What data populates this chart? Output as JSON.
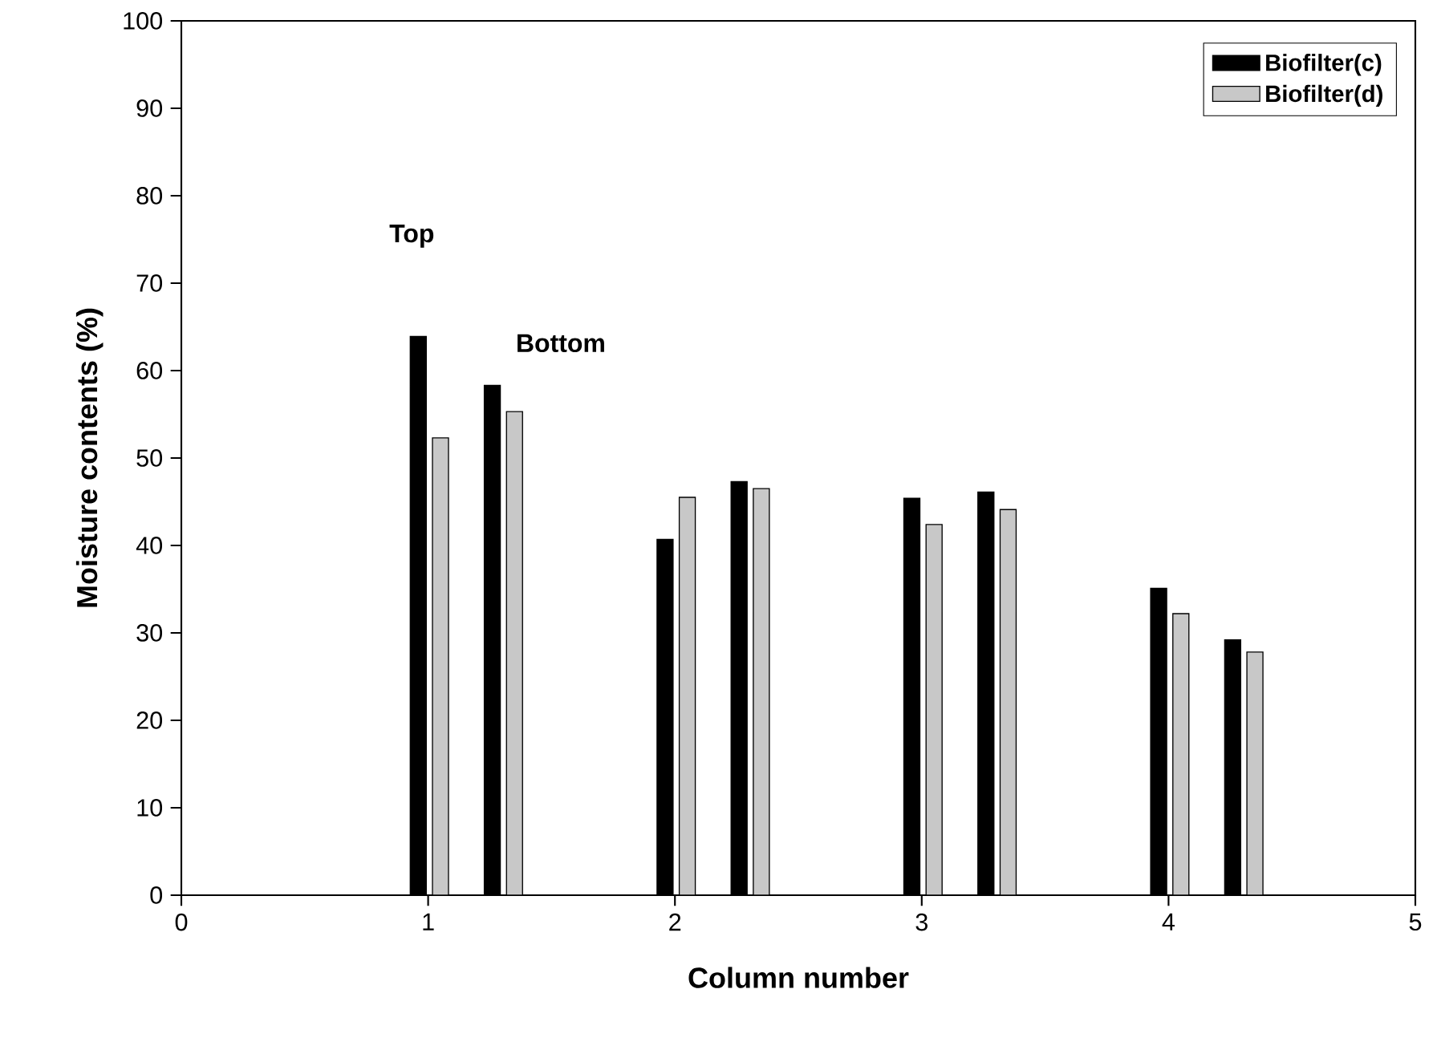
{
  "chart_data": {
    "type": "bar",
    "xlabel": "Column number",
    "ylabel": "Moisture contents (%)",
    "xlim": [
      0,
      5
    ],
    "xticks": [
      0,
      1,
      2,
      3,
      4,
      5
    ],
    "ylim": [
      0,
      100
    ],
    "yticks": [
      0,
      10,
      20,
      30,
      40,
      50,
      60,
      70,
      80,
      90,
      100
    ],
    "series": [
      {
        "name": "Biofilter(c)",
        "color": "#000000",
        "x": [
          0.96,
          1.26,
          1.96,
          2.26,
          2.96,
          3.26,
          3.96,
          4.26
        ],
        "values": [
          63.9,
          58.3,
          40.7,
          47.3,
          45.4,
          46.1,
          35.1,
          29.2
        ]
      },
      {
        "name": "Biofilter(d)",
        "color": "#c8c8c8",
        "x": [
          1.05,
          1.35,
          2.05,
          2.35,
          3.05,
          3.35,
          4.05,
          4.35
        ],
        "values": [
          52.3,
          55.3,
          45.5,
          46.5,
          42.4,
          44.1,
          32.2,
          27.8
        ]
      }
    ],
    "annotations": [
      "Top",
      "Bottom"
    ],
    "legend": "top right",
    "grid": false
  }
}
